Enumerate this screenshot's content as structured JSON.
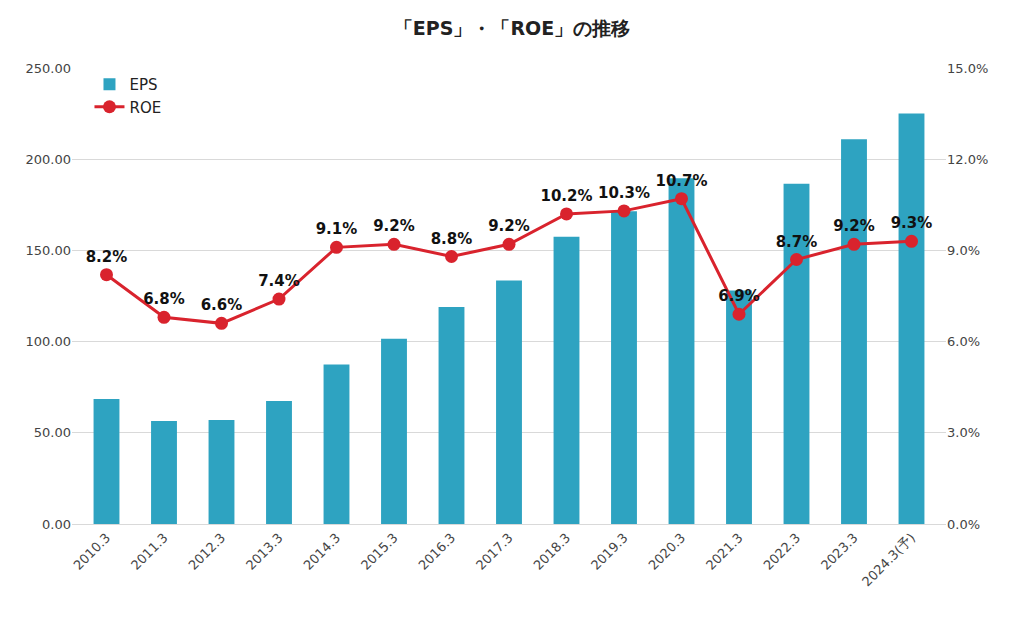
{
  "chart_data": {
    "type": "bar",
    "title": "「EPS」・「ROE」の推移",
    "categories": [
      "2010.3",
      "2011.3",
      "2012.3",
      "2013.3",
      "2014.3",
      "2015.3",
      "2016.3",
      "2017.3",
      "2018.3",
      "2019.3",
      "2020.3",
      "2021.3",
      "2022.3",
      "2023.3",
      "2024.3(予)"
    ],
    "series": [
      {
        "name": "EPS",
        "type": "bar",
        "color": "#2ea3c1",
        "values": [
          68.5,
          56.5,
          57,
          67.5,
          87.5,
          101.5,
          119,
          133.5,
          157.5,
          171.5,
          189.5,
          128,
          186.5,
          211,
          225
        ]
      },
      {
        "name": "ROE",
        "type": "line",
        "axis": "y2",
        "color": "#d9232d",
        "marker": "circle",
        "line_style": "solid",
        "data_labels": true,
        "values": [
          8.2,
          6.8,
          6.6,
          7.4,
          9.1,
          9.2,
          8.8,
          9.2,
          10.2,
          10.3,
          10.7,
          6.9,
          8.7,
          9.2,
          9.3
        ],
        "value_labels": [
          "8.2%",
          "6.8%",
          "6.6%",
          "7.4%",
          "9.1%",
          "9.2%",
          "8.8%",
          "9.2%",
          "10.2%",
          "10.3%",
          "10.7%",
          "6.9%",
          "8.7%",
          "9.2%",
          "9.3%"
        ]
      }
    ],
    "ylim": [
      0,
      250
    ],
    "yticks": [
      {
        "value": 0,
        "label": "0.00"
      },
      {
        "value": 50,
        "label": "50.00"
      },
      {
        "value": 100,
        "label": "100.00"
      },
      {
        "value": 150,
        "label": "150.00"
      },
      {
        "value": 200,
        "label": "200.00"
      },
      {
        "value": 250,
        "label": "250.00"
      }
    ],
    "y2lim": [
      0,
      15
    ],
    "y2ticks": [
      {
        "value": 0,
        "label": "0.0%"
      },
      {
        "value": 3,
        "label": "3.0%"
      },
      {
        "value": 6,
        "label": "6.0%"
      },
      {
        "value": 9,
        "label": "9.0%"
      },
      {
        "value": 12,
        "label": "12.0%"
      },
      {
        "value": 15,
        "label": "15.0%"
      }
    ],
    "grid": true,
    "legend": "top-left"
  }
}
